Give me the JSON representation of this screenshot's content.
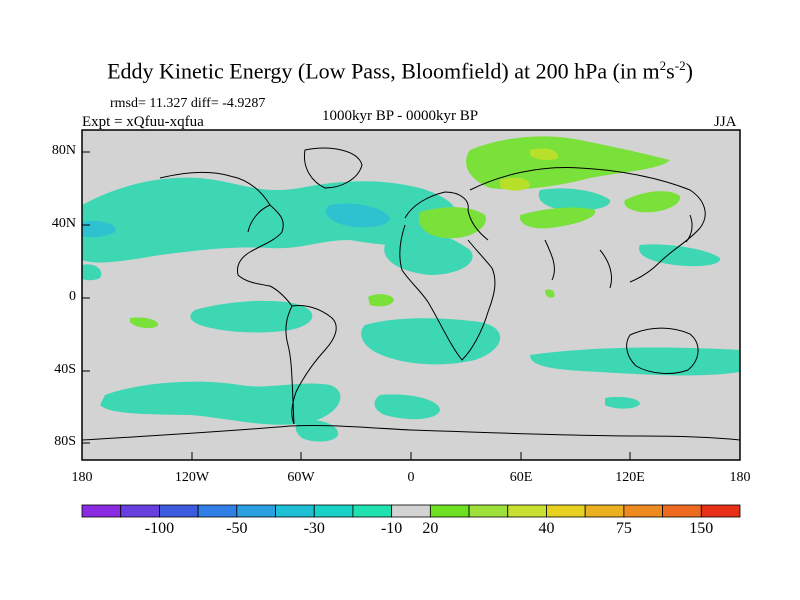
{
  "title_main": "Eddy Kinetic Energy (Low Pass, Bloomfield) at 200 hPa (in m",
  "title_sup1": "2",
  "title_mid": "s",
  "title_sup2": "-2",
  "title_end": ")",
  "stats": "rmsd= 11.327 diff= -4.9287",
  "expt": "Expt = xQfuu-xqfua",
  "period": "1000kyr BP - 0000kyr BP",
  "season": "JJA",
  "lat_labels": [
    "80N",
    "40N",
    "0",
    "40S",
    "80S"
  ],
  "lon_labels": [
    "180",
    "120W",
    "60W",
    "0",
    "60E",
    "120E",
    "180"
  ],
  "colorbar": {
    "labels": [
      "-100",
      "-50",
      "-30",
      "-10",
      "20",
      "40",
      "75",
      "150"
    ],
    "colors": [
      "#8a2be2",
      "#6a3fe0",
      "#3f5be0",
      "#2f7fe6",
      "#2aa0e0",
      "#1fbfd6",
      "#18d2c8",
      "#20e2b0",
      "#d3d3d3",
      "#6fe020",
      "#9ee03a",
      "#c8e030",
      "#e6d020",
      "#eab020",
      "#ee8a20",
      "#ee6a20",
      "#e83018"
    ]
  },
  "colors": {
    "ocean_bg": "#d3d3d3",
    "cyan_fill": "#3ed7b4",
    "aqua_fill": "#2ec2d0",
    "green_fill": "#7ae03a",
    "lime_fill": "#b8e02a"
  }
}
